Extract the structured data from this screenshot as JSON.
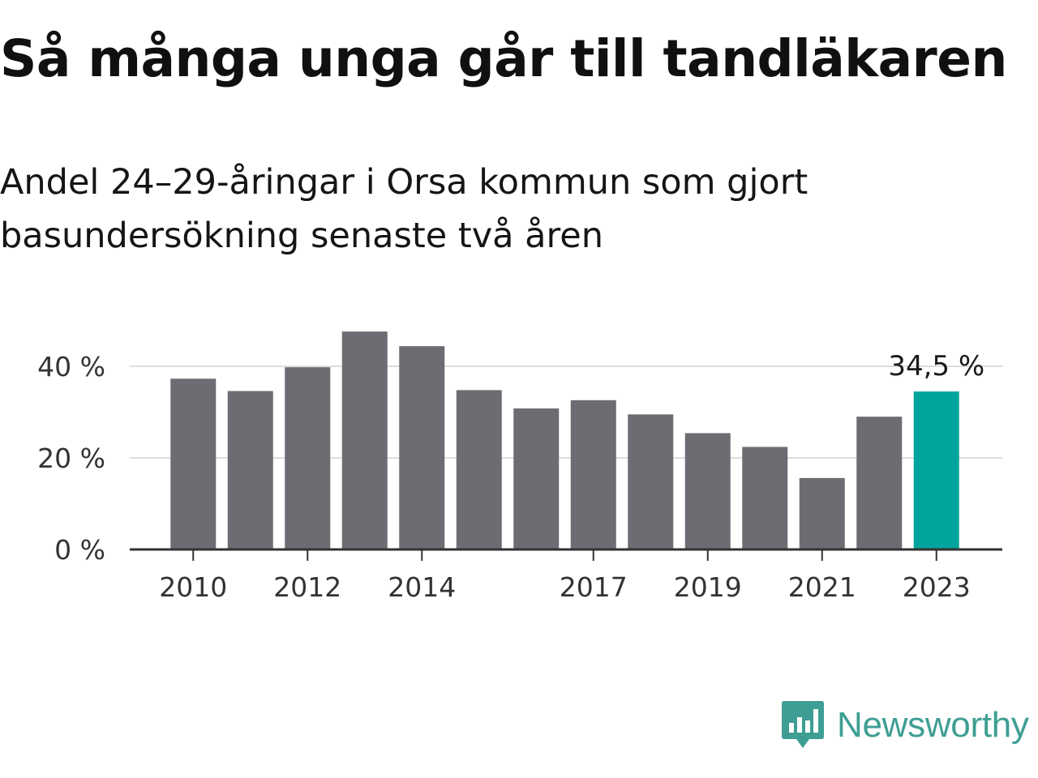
{
  "header": {
    "title": "Så många unga går till tandläkaren",
    "subtitle": "Andel 24–29-åringar i Orsa kommun som gjort basundersökning senaste två åren"
  },
  "chart_data": {
    "type": "bar",
    "title": "Så många unga går till tandläkaren",
    "subtitle": "Andel 24–29-åringar i Orsa kommun som gjort basundersökning senaste två åren",
    "categories": [
      "2010",
      "2011",
      "2012",
      "2013",
      "2014",
      "2015",
      "2016",
      "2017",
      "2018",
      "2019",
      "2020",
      "2021",
      "2022",
      "2023"
    ],
    "values": [
      37.3,
      34.6,
      39.8,
      47.6,
      44.4,
      34.8,
      30.8,
      32.6,
      29.5,
      25.4,
      22.4,
      15.6,
      29.0,
      34.5
    ],
    "x_tick_labels": [
      "2010",
      "2012",
      "2014",
      "2017",
      "2019",
      "2021",
      "2023"
    ],
    "y_ticks": [
      0,
      20,
      40
    ],
    "y_tick_labels": [
      "0 %",
      "20 %",
      "40 %"
    ],
    "ylim": [
      0,
      48
    ],
    "grid": true,
    "highlight": {
      "category": "2023",
      "label": "34,5 %"
    },
    "colors": {
      "bar": "#6d6c73",
      "highlight": "#00a59b",
      "grid": "#dddddd",
      "axis": "#333333"
    }
  },
  "branding": {
    "name": "Newsworthy",
    "color": "#3e9e93",
    "icon": "newsworthy-logo-icon"
  }
}
